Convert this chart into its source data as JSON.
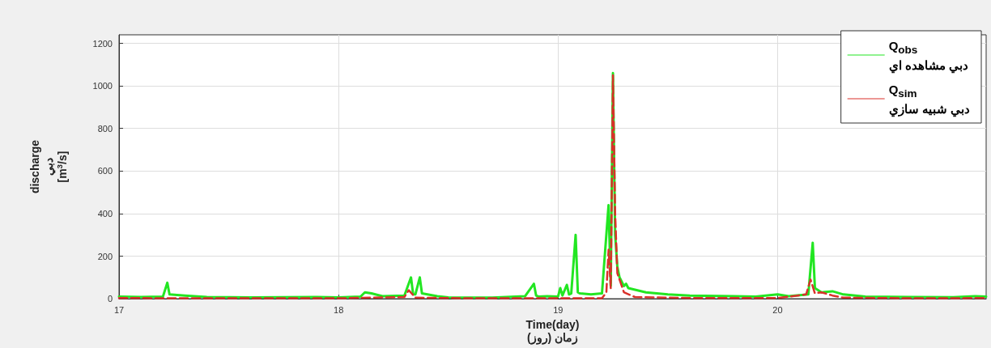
{
  "chart_data": {
    "type": "line",
    "xlabel": "Time(day)\nزمان (روز)",
    "ylabel": "discharge\nدبي\n[m$^{3}$/s]",
    "xlim": [
      17,
      20.95
    ],
    "xticks": [
      17,
      18,
      19,
      20
    ],
    "ylim": [
      0,
      1240
    ],
    "yticks": [
      0,
      200,
      400,
      600,
      800,
      1000,
      1200
    ],
    "grid": true,
    "legend": "top right",
    "marker": "none",
    "series": [
      {
        "name": "Q$_{obs}$\nدبي مشاهده اي",
        "color": "#22e622",
        "line_style": "solid",
        "x": [
          17,
          17.1,
          17.2,
          17.22,
          17.23,
          17.3,
          17.4,
          17.6,
          17.9,
          18.0,
          18.1,
          18.12,
          18.15,
          18.2,
          18.3,
          18.33,
          18.34,
          18.35,
          18.37,
          18.38,
          18.45,
          18.5,
          18.7,
          18.85,
          18.89,
          18.9,
          18.91,
          18.95,
          19.0,
          19.01,
          19.02,
          19.04,
          19.05,
          19.06,
          19.08,
          19.09,
          19.1,
          19.15,
          19.2,
          19.23,
          19.24,
          19.25,
          19.26,
          19.27,
          19.28,
          19.3,
          19.31,
          19.32,
          19.4,
          19.5,
          19.6,
          19.8,
          19.9,
          20.0,
          20.05,
          20.14,
          20.16,
          20.17,
          20.2,
          20.25,
          20.3,
          20.4,
          20.6,
          20.8,
          20.9,
          20.95
        ],
        "values": [
          10,
          8,
          10,
          75,
          20,
          15,
          8,
          6,
          8,
          6,
          10,
          30,
          25,
          12,
          15,
          100,
          20,
          20,
          100,
          25,
          12,
          6,
          5,
          12,
          70,
          15,
          10,
          12,
          10,
          50,
          15,
          65,
          20,
          25,
          300,
          30,
          25,
          20,
          25,
          440,
          60,
          1060,
          300,
          150,
          100,
          60,
          70,
          50,
          30,
          20,
          15,
          12,
          10,
          20,
          12,
          20,
          263,
          50,
          30,
          35,
          20,
          10,
          8,
          7,
          12,
          10
        ]
      },
      {
        "name": "Q$_{sim}$\nدبي شبيه سازي",
        "color": "#d9312b",
        "line_style": "dashed",
        "x": [
          17,
          17.5,
          18.0,
          18.3,
          18.32,
          18.35,
          18.6,
          19.0,
          19.2,
          19.22,
          19.23,
          19.24,
          19.25,
          19.26,
          19.27,
          19.3,
          19.35,
          19.6,
          20.0,
          20.13,
          20.15,
          20.17,
          20.2,
          20.25,
          20.3,
          20.6,
          20.95
        ],
        "values": [
          3,
          2,
          2,
          8,
          40,
          5,
          2,
          2,
          2,
          30,
          230,
          50,
          1050,
          400,
          120,
          30,
          8,
          3,
          3,
          20,
          90,
          25,
          30,
          15,
          5,
          2,
          3
        ]
      }
    ]
  }
}
